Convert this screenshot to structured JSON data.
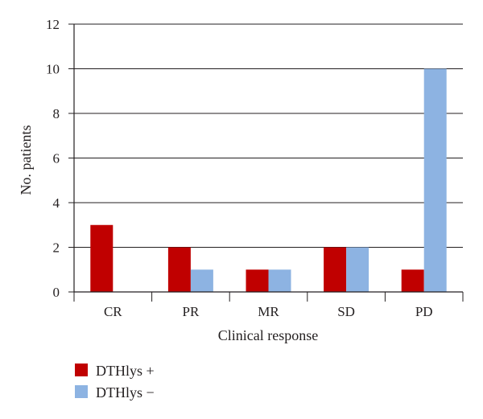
{
  "chart_data": {
    "type": "bar",
    "categories": [
      "CR",
      "PR",
      "MR",
      "SD",
      "PD"
    ],
    "series": [
      {
        "name": "DTHlys +",
        "values": [
          3,
          2,
          1,
          2,
          1
        ],
        "color": "#c00000"
      },
      {
        "name": "DTHlys −",
        "values": [
          0,
          1,
          1,
          2,
          10
        ],
        "color": "#8db3e2"
      }
    ],
    "xlabel": "Clinical response",
    "ylabel": "No. patients",
    "ylim": [
      0,
      12
    ],
    "yticks": [
      0,
      2,
      4,
      6,
      8,
      10,
      12
    ],
    "grid": true,
    "legend_position": "bottom-left"
  }
}
